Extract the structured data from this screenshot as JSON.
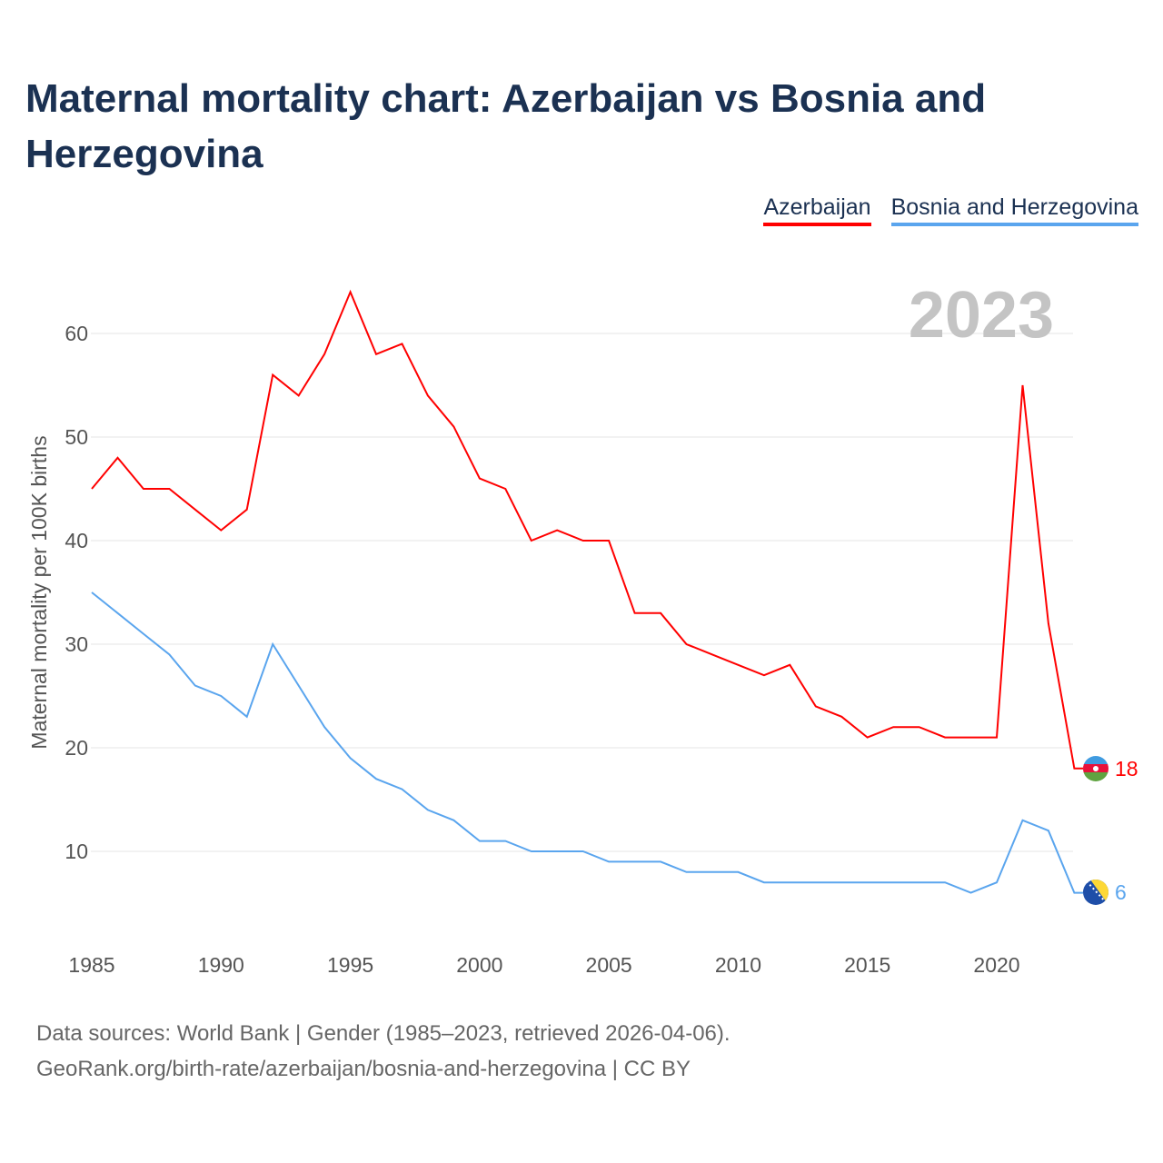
{
  "chart_data": {
    "type": "line",
    "title": "Maternal mortality chart: Azerbaijan vs Bosnia and Herzegovina",
    "ylabel": "Maternal mortality per 100K births",
    "xlabel": "",
    "year_watermark": "2023",
    "x": [
      1985,
      1986,
      1987,
      1988,
      1989,
      1990,
      1991,
      1992,
      1993,
      1994,
      1995,
      1996,
      1997,
      1998,
      1999,
      2000,
      2001,
      2002,
      2003,
      2004,
      2005,
      2006,
      2007,
      2008,
      2009,
      2010,
      2011,
      2012,
      2013,
      2014,
      2015,
      2016,
      2017,
      2018,
      2019,
      2020,
      2021,
      2022,
      2023
    ],
    "xlim": [
      1985,
      2023
    ],
    "ylim": [
      0,
      65
    ],
    "xticks": [
      "1985",
      "1990",
      "1995",
      "2000",
      "2005",
      "2010",
      "2015",
      "2020"
    ],
    "yticks": [
      "10",
      "20",
      "30",
      "40",
      "50",
      "60"
    ],
    "grid": true,
    "legend_position": "top-right",
    "series": [
      {
        "name": "Azerbaijan",
        "color": "#ff0000",
        "end_label": "18",
        "values": [
          45,
          48,
          45,
          45,
          43,
          41,
          43,
          56,
          54,
          58,
          64,
          58,
          59,
          54,
          51,
          46,
          45,
          40,
          41,
          40,
          40,
          33,
          33,
          30,
          29,
          28,
          27,
          28,
          24,
          23,
          21,
          22,
          22,
          21,
          21,
          21,
          55,
          32,
          18
        ]
      },
      {
        "name": "Bosnia and Herzegovina",
        "color": "#5aa5ee",
        "end_label": "6",
        "values": [
          35,
          33,
          31,
          29,
          26,
          25,
          23,
          30,
          26,
          22,
          19,
          17,
          16,
          14,
          13,
          11,
          11,
          10,
          10,
          10,
          9,
          9,
          9,
          8,
          8,
          8,
          7,
          7,
          7,
          7,
          7,
          7,
          7,
          7,
          6,
          7,
          13,
          12,
          6
        ]
      }
    ]
  },
  "footer": {
    "line1": "Data sources: World Bank | Gender (1985–2023, retrieved 2026-04-06).",
    "line2": "GeoRank.org/birth-rate/azerbaijan/bosnia-and-herzegovina | CC BY"
  }
}
